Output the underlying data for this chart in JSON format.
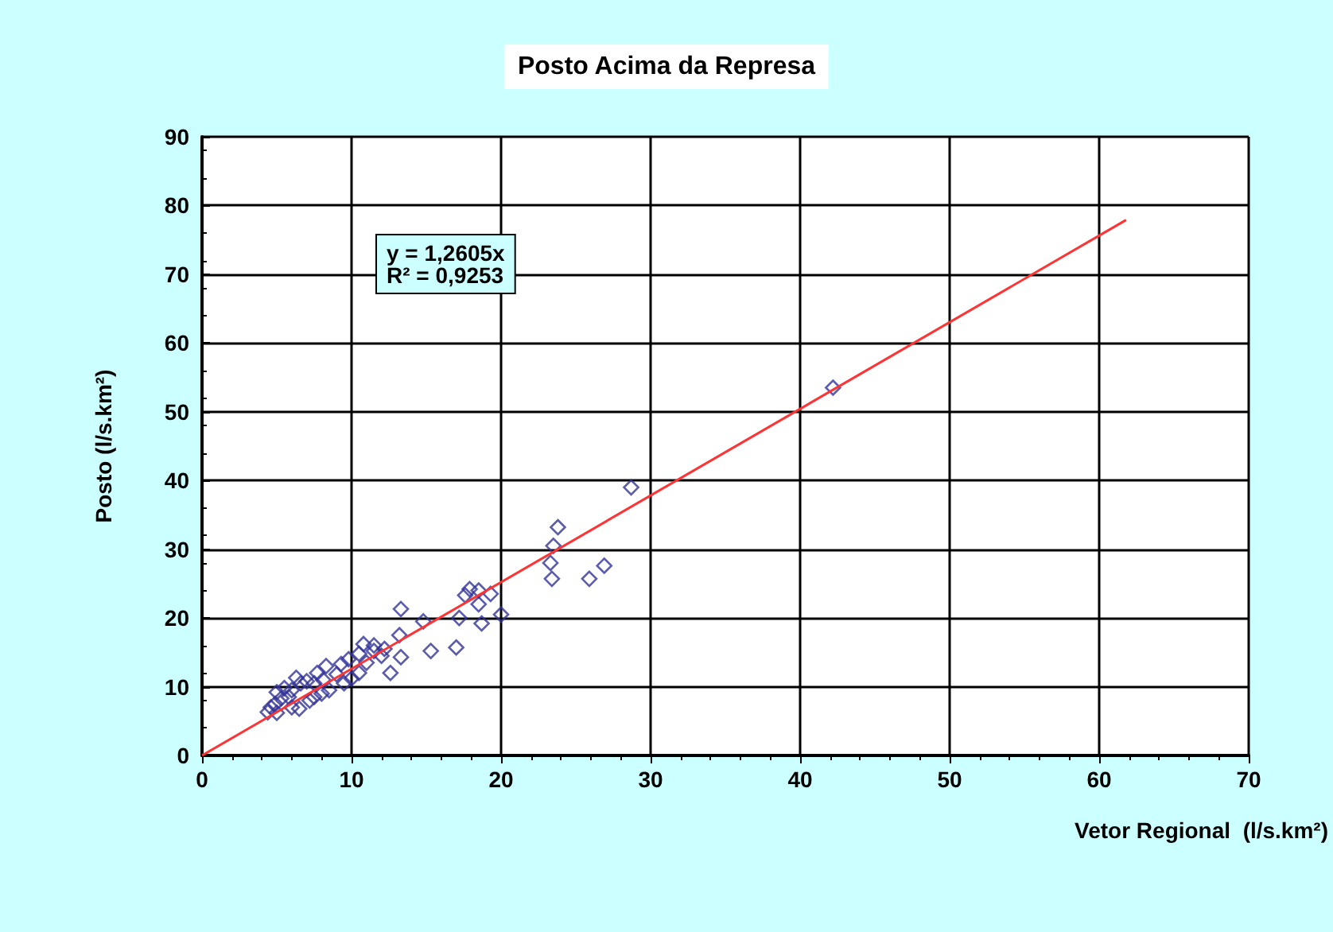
{
  "chart_data": {
    "type": "scatter",
    "title": "Posto Acima da Represa",
    "xlabel": "Vetor Regional  (l/s.km²)",
    "ylabel": "Posto (l/s.km²)",
    "annotations": [
      "y = 1,2605x\nR² = 0,9253"
    ],
    "xlim": [
      0,
      70
    ],
    "xticks": [
      0,
      10,
      20,
      30,
      40,
      50,
      60,
      70
    ],
    "ylim": [
      0,
      90
    ],
    "yticks": [
      0,
      10,
      20,
      30,
      40,
      50,
      60,
      70,
      80,
      90
    ],
    "grid": true,
    "marker": "diamond",
    "series": [
      {
        "color": "#333399",
        "x": [
          42.2,
          28.7,
          23.8,
          23.5,
          23.3,
          23.4,
          26.9,
          25.9,
          20,
          19.3,
          18.5,
          17.9,
          17.6,
          18.5,
          18.7,
          17.2,
          17,
          15.3,
          14.8,
          13.3,
          13.2,
          13.3,
          12.6,
          12.2,
          11.5,
          10.8,
          11,
          10.5,
          10.5,
          9.8,
          9.3,
          9,
          8.3,
          8.1,
          7.7,
          7.5,
          8,
          7.5,
          7,
          6.6,
          6.3,
          6,
          5.8,
          5.5,
          5.3,
          5,
          4.9,
          4.6,
          4.4,
          5,
          6,
          6.5,
          7.2,
          8.5,
          9.5,
          10,
          11.5,
          12
        ],
        "values": [
          53.5,
          39,
          33.2,
          30.5,
          28,
          25.7,
          27.6,
          25.7,
          20.5,
          23.5,
          24,
          24.2,
          23.3,
          22,
          19.2,
          20,
          15.7,
          15.2,
          19.5,
          21.3,
          17.5,
          14.3,
          12,
          15.5,
          16,
          16.2,
          13.5,
          14.8,
          12,
          14,
          13.3,
          11.8,
          13,
          11,
          12,
          10.5,
          9,
          8.5,
          10.8,
          10.5,
          11.3,
          9.5,
          8.5,
          9.8,
          8.3,
          9.2,
          7.5,
          7,
          6.3,
          6.2,
          7,
          6.8,
          8,
          9.5,
          10.5,
          11.2,
          15.2,
          14.5
        ]
      },
      {
        "type": "line",
        "color": "#ff3333",
        "marker": "none",
        "x": [
          0,
          61.8
        ],
        "values": [
          0,
          77.9
        ]
      }
    ]
  }
}
